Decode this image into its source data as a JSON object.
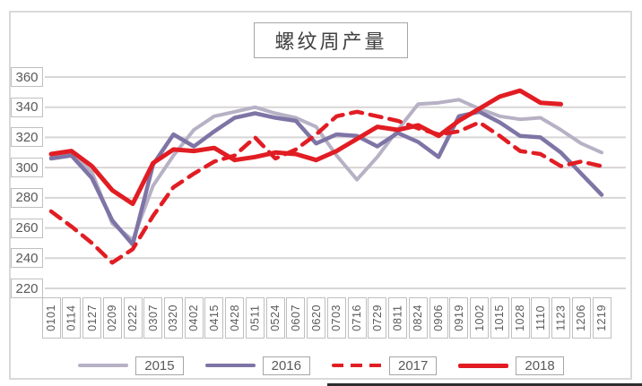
{
  "title": "螺纹周产量",
  "chart_data": {
    "type": "line",
    "title": "螺纹周产量",
    "grid": true,
    "legend_position": "bottom",
    "ylim": [
      220,
      360
    ],
    "yticks": [
      360,
      340,
      320,
      300,
      280,
      260,
      240,
      220
    ],
    "categories": [
      "0101",
      "0114",
      "0127",
      "0209",
      "0222",
      "0307",
      "0320",
      "0402",
      "0415",
      "0428",
      "0511",
      "0524",
      "0607",
      "0620",
      "0703",
      "0716",
      "0729",
      "0811",
      "0824",
      "0906",
      "0919",
      "1002",
      "1015",
      "1028",
      "1110",
      "1123",
      "1206",
      "1219"
    ],
    "series": [
      {
        "name": "2015",
        "color": "#b7b1c5",
        "style": "solid",
        "width": 4,
        "values": [
          307,
          309,
          297,
          263,
          252,
          288,
          308,
          325,
          334,
          337,
          340,
          336,
          333,
          327,
          308,
          292,
          307,
          325,
          342,
          343,
          345,
          339,
          334,
          332,
          333,
          325,
          316,
          310
        ]
      },
      {
        "name": "2016",
        "color": "#7e74a5",
        "style": "solid",
        "width": 4.5,
        "values": [
          306,
          308,
          293,
          265,
          249,
          302,
          322,
          314,
          324,
          333,
          336,
          333,
          331,
          316,
          322,
          321,
          314,
          323,
          317,
          307,
          334,
          337,
          330,
          321,
          320,
          310,
          296,
          282
        ]
      },
      {
        "name": "2017",
        "color": "#e11d23",
        "style": "dashed",
        "width": 4.5,
        "values": [
          271,
          261,
          250,
          237,
          246,
          268,
          287,
          296,
          304,
          308,
          320,
          306,
          312,
          322,
          334,
          337,
          334,
          331,
          326,
          322,
          324,
          330,
          321,
          311,
          309,
          301,
          304,
          301
        ]
      },
      {
        "name": "2018",
        "color": "#e11d23",
        "style": "solid",
        "width": 5,
        "values": [
          309,
          311,
          301,
          285,
          276,
          303,
          312,
          311,
          313,
          305,
          307,
          310,
          309,
          305,
          311,
          319,
          327,
          325,
          328,
          321,
          331,
          339,
          347,
          351,
          343,
          342
        ]
      }
    ],
    "gridline_color": "#d8d5d5",
    "label_box_border": "#bfbfbf"
  }
}
